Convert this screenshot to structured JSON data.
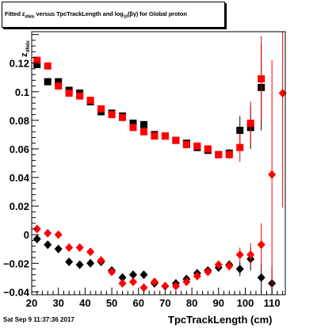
{
  "title": {
    "pre": "Fitted  z",
    "sub1": "dNdx",
    "mid": " versus TpcTrackLength and log",
    "sub2": "10",
    "post": "(βγ) for Global proton"
  },
  "footer_date": "Sat Sep  9 11:37:36 2017",
  "colors": {
    "black": "#000000",
    "red": "#ff0000"
  },
  "chart_data": {
    "type": "scatter",
    "title": "Fitted z_dNdx versus TpcTrackLength and log10(βγ) for Global proton",
    "xlabel": "TpcTrackLength (cm)",
    "ylabel": "z_dNdx",
    "xlim": [
      20,
      115
    ],
    "ylim": [
      -0.042,
      0.142
    ],
    "xticks": [
      20,
      30,
      40,
      50,
      60,
      70,
      80,
      90,
      100,
      110
    ],
    "yticks": [
      -0.04,
      -0.02,
      0,
      0.02,
      0.04,
      0.06,
      0.08,
      0.1,
      0.12
    ],
    "yticklabels": [
      "−0.04",
      "−0.02",
      "0",
      "0.02",
      "0.04",
      "0.06",
      "0.08",
      "0.1",
      "0.12"
    ],
    "series": [
      {
        "marker": "square",
        "color": "#000000",
        "x": [
          22,
          26,
          30,
          34,
          38,
          42,
          46,
          50,
          54,
          58,
          62,
          66,
          70,
          74,
          78,
          82,
          86,
          90,
          94,
          98,
          102,
          106
        ],
        "y": [
          0.119,
          0.107,
          0.107,
          0.101,
          0.099,
          0.093,
          0.086,
          0.085,
          0.083,
          0.078,
          0.077,
          0.07,
          0.069,
          0.066,
          0.064,
          0.061,
          0.059,
          0.056,
          0.057,
          0.073,
          0.075,
          0.103
        ],
        "yerr": [
          0.002,
          0.002,
          0.002,
          0.002,
          0.002,
          0.002,
          0.002,
          0.002,
          0.002,
          0.002,
          0.002,
          0.002,
          0.002,
          0.002,
          0.002,
          0.002,
          0.002,
          0.002,
          0.003,
          0.01,
          0.015,
          0.03
        ]
      },
      {
        "marker": "square",
        "color": "#ff0000",
        "x": [
          22,
          26,
          30,
          34,
          38,
          42,
          46,
          50,
          54,
          58,
          62,
          66,
          70,
          74,
          78,
          82,
          86,
          90,
          94,
          98,
          102,
          106
        ],
        "y": [
          0.122,
          0.118,
          0.104,
          0.099,
          0.097,
          0.094,
          0.088,
          0.084,
          0.082,
          0.075,
          0.072,
          0.069,
          0.069,
          0.066,
          0.063,
          0.062,
          0.06,
          0.056,
          0.056,
          0.061,
          0.078,
          0.109
        ],
        "yerr": [
          0.002,
          0.002,
          0.002,
          0.002,
          0.002,
          0.002,
          0.002,
          0.002,
          0.002,
          0.002,
          0.002,
          0.002,
          0.002,
          0.002,
          0.002,
          0.002,
          0.002,
          0.002,
          0.003,
          0.01,
          0.015,
          0.03
        ]
      },
      {
        "marker": "diamond",
        "color": "#000000",
        "x": [
          22,
          26,
          30,
          34,
          38,
          42,
          46,
          50,
          54,
          58,
          62,
          66,
          70,
          74,
          78,
          82,
          86,
          90,
          94,
          98,
          102,
          106,
          110
        ],
        "y": [
          -0.003,
          -0.007,
          -0.01,
          -0.019,
          -0.021,
          -0.02,
          -0.019,
          -0.025,
          -0.03,
          -0.028,
          -0.028,
          -0.034,
          -0.036,
          -0.034,
          -0.031,
          -0.027,
          -0.025,
          -0.023,
          -0.021,
          -0.024,
          -0.017,
          -0.03,
          -0.034
        ],
        "yerr": [
          0.002,
          0.002,
          0.002,
          0.002,
          0.002,
          0.002,
          0.002,
          0.002,
          0.002,
          0.002,
          0.002,
          0.002,
          0.002,
          0.002,
          0.002,
          0.002,
          0.002,
          0.002,
          0.003,
          0.005,
          0.008,
          0.01,
          0.012
        ]
      },
      {
        "marker": "diamond",
        "color": "#ff0000",
        "x": [
          22,
          26,
          30,
          34,
          38,
          42,
          46,
          50,
          54,
          58,
          62,
          66,
          70,
          74,
          78,
          82,
          86,
          90,
          94,
          98,
          102,
          106,
          110,
          114
        ],
        "y": [
          0.004,
          0.001,
          0.0,
          -0.009,
          -0.009,
          -0.012,
          -0.018,
          -0.026,
          -0.034,
          -0.033,
          -0.037,
          -0.033,
          -0.036,
          -0.036,
          -0.033,
          -0.029,
          -0.026,
          -0.021,
          -0.022,
          -0.014,
          -0.014,
          -0.007,
          0.042,
          0.099
        ],
        "yerr": [
          0.002,
          0.002,
          0.002,
          0.002,
          0.002,
          0.002,
          0.002,
          0.002,
          0.002,
          0.002,
          0.002,
          0.002,
          0.002,
          0.002,
          0.002,
          0.002,
          0.002,
          0.002,
          0.003,
          0.005,
          0.008,
          0.015,
          0.08,
          0.08
        ]
      }
    ]
  }
}
